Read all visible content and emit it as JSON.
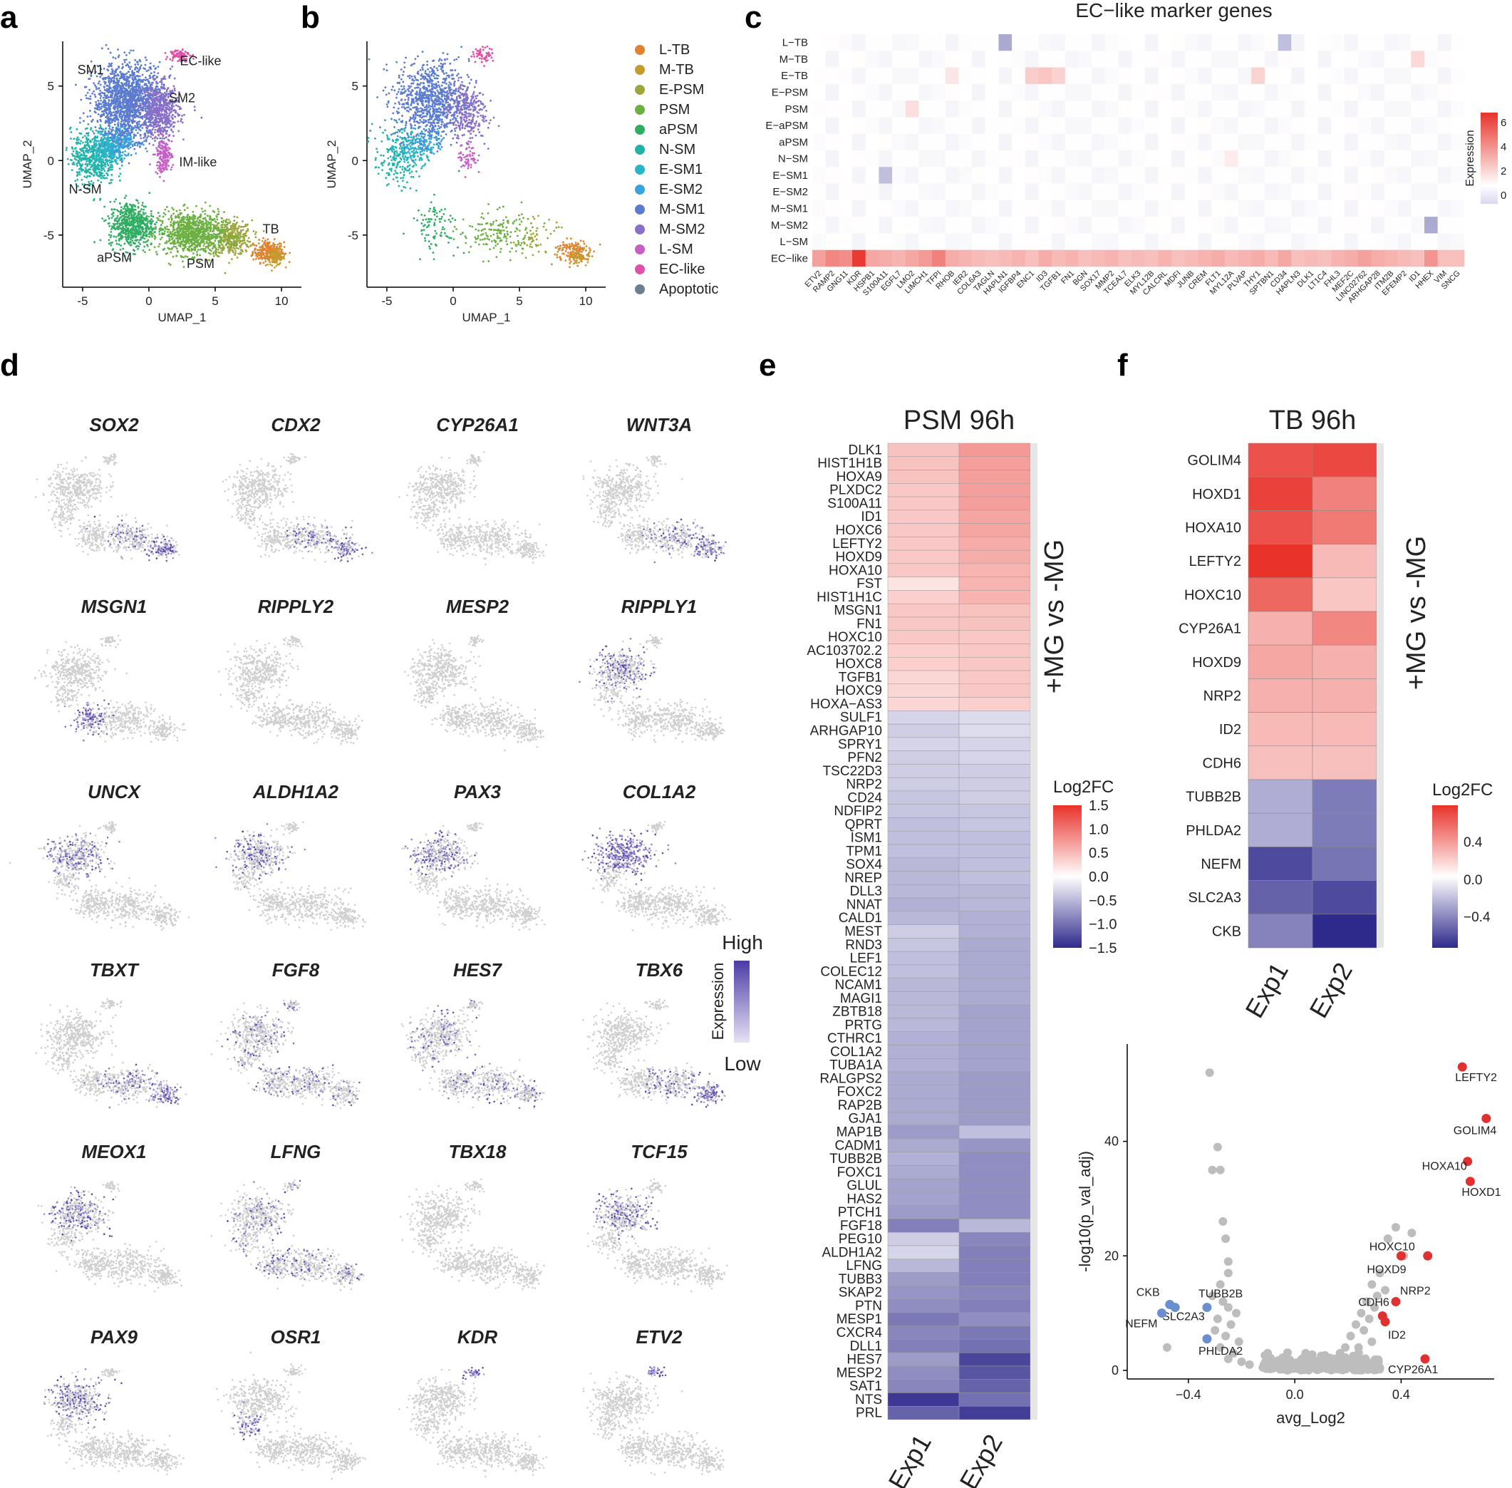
{
  "panel_letters": {
    "a": "a",
    "b": "b",
    "c": "c",
    "d": "d",
    "e": "e",
    "f": "f"
  },
  "chart_data": [
    {
      "id": "panel-a",
      "type": "scatter",
      "title": "",
      "xlabel": "UMAP_1",
      "ylabel": "UMAP_2",
      "xlim": [
        -6.5,
        11.5
      ],
      "ylim": [
        -8.5,
        8
      ],
      "xticks": [
        -5,
        0,
        5,
        10
      ],
      "yticks": [
        5,
        0,
        -5
      ],
      "cluster_labels": [
        {
          "text": "SM1",
          "x": -4.4,
          "y": 5.8
        },
        {
          "text": "EC-like",
          "x": 3.9,
          "y": 6.4
        },
        {
          "text": "SM2",
          "x": 2.5,
          "y": 3.9
        },
        {
          "text": "IM-like",
          "x": 3.7,
          "y": -0.4
        },
        {
          "text": "N-SM",
          "x": -4.8,
          "y": -2.2
        },
        {
          "text": "TB",
          "x": 9.2,
          "y": -4.9
        },
        {
          "text": "aPSM",
          "x": -2.6,
          "y": -6.8
        },
        {
          "text": "PSM",
          "x": 3.9,
          "y": -7.2
        }
      ],
      "series": [
        {
          "name": "L-TB",
          "color": "#e0822e",
          "cx": 9.0,
          "cy": -6.1,
          "sx": 0.9,
          "sy": 0.55
        },
        {
          "name": "M-TB",
          "color": "#c79a2e",
          "cx": 9.6,
          "cy": -6.5,
          "sx": 0.5,
          "sy": 0.4
        },
        {
          "name": "E-PSM",
          "color": "#9ca63a",
          "cx": 6.2,
          "cy": -5.2,
          "sx": 1.2,
          "sy": 0.9
        },
        {
          "name": "PSM",
          "color": "#6cb042",
          "cx": 3.2,
          "cy": -4.9,
          "sx": 1.9,
          "sy": 1.1
        },
        {
          "name": "aPSM",
          "color": "#2fae62",
          "cx": -1.3,
          "cy": -4.3,
          "sx": 1.3,
          "sy": 1.2
        },
        {
          "name": "N-SM",
          "color": "#22b3a8",
          "cx": -4.2,
          "cy": 0.2,
          "sx": 1.3,
          "sy": 1.4
        },
        {
          "name": "E-SM1",
          "color": "#29b5c9",
          "cx": -3.0,
          "cy": 0.8,
          "sx": 1.0,
          "sy": 0.8
        },
        {
          "name": "E-SM2",
          "color": "#3aa3de",
          "cx": -2.0,
          "cy": 1.4,
          "sx": 0.9,
          "sy": 0.7
        },
        {
          "name": "M-SM1",
          "color": "#5a7bd0",
          "cx": -1.6,
          "cy": 4.0,
          "sx": 2.0,
          "sy": 1.9
        },
        {
          "name": "M-SM2",
          "color": "#8a6fc9",
          "cx": 0.9,
          "cy": 3.3,
          "sx": 1.1,
          "sy": 1.4
        },
        {
          "name": "L-SM",
          "color": "#c55ec5",
          "cx": 1.1,
          "cy": 0.3,
          "sx": 0.5,
          "sy": 0.9
        },
        {
          "name": "EC-like",
          "color": "#e050a8",
          "cx": 2.3,
          "cy": 7.1,
          "sx": 0.6,
          "sy": 0.35
        },
        {
          "name": "Apoptotic",
          "color": "#6a7f8f",
          "cx": 0,
          "cy": 0,
          "sx": 0,
          "sy": 0
        }
      ]
    },
    {
      "id": "panel-b",
      "type": "scatter",
      "xlabel": "UMAP_1",
      "ylabel": "UMAP_2",
      "xlim": [
        -6.5,
        11.5
      ],
      "ylim": [
        -8.5,
        8
      ],
      "xticks": [
        -5,
        0,
        5,
        10
      ],
      "yticks": [
        5,
        0,
        -5
      ],
      "legend": [
        "L-TB",
        "M-TB",
        "E-PSM",
        "PSM",
        "aPSM",
        "N-SM",
        "E-SM1",
        "E-SM2",
        "M-SM1",
        "M-SM2",
        "L-SM",
        "EC-like",
        "Apoptotic"
      ]
    },
    {
      "id": "panel-c",
      "type": "heatmap",
      "title": "EC−like marker genes",
      "rows": [
        "L−TB",
        "M−TB",
        "E−TB",
        "E−PSM",
        "PSM",
        "E−aPSM",
        "aPSM",
        "N−SM",
        "E−SM1",
        "E−SM2",
        "M−SM1",
        "M−SM2",
        "L−SM",
        "EC−like"
      ],
      "columns": [
        "ETV2",
        "RAMP2",
        "GNG11",
        "KDR",
        "HSPB1",
        "S100A11",
        "EGFL7",
        "LMO2",
        "LIMCH1",
        "TFPI",
        "RHOB",
        "IER2",
        "COL6A3",
        "TAGLN",
        "HAPLN1",
        "IGFBP4",
        "ENC1",
        "ID3",
        "TGFB1",
        "FN1",
        "BGN",
        "SOX17",
        "MMP2",
        "TCEAL7",
        "ELK3",
        "MYL12B",
        "CALCRL",
        "MDFI",
        "JUNB",
        "CREM",
        "FLT1",
        "MYL12A",
        "PLVAP",
        "THY1",
        "SPTBN1",
        "CD34",
        "HAPLN3",
        "DLK1",
        "LT1C4",
        "FHL3",
        "MEF2C",
        "LINC02762",
        "ARHGAP28",
        "ITM2B",
        "EFEMP2",
        "ID1",
        "HHEX",
        "VIM",
        "SNCG"
      ],
      "ec_like_row": [
        3.0,
        3.8,
        3.6,
        6.2,
        2.8,
        2.6,
        2.4,
        2.8,
        3.2,
        4.0,
        2.6,
        2.4,
        2.2,
        2.0,
        2.2,
        2.4,
        2.0,
        2.6,
        2.2,
        2.4,
        2.0,
        2.2,
        2.4,
        2.0,
        2.2,
        2.0,
        2.4,
        2.0,
        2.2,
        2.4,
        2.6,
        2.2,
        2.4,
        2.6,
        2.2,
        2.8,
        2.0,
        2.2,
        2.0,
        2.4,
        2.6,
        3.0,
        2.6,
        2.4,
        2.2,
        2.0,
        3.4,
        2.0,
        2.0
      ],
      "highlights": [
        {
          "row": 2,
          "col": 16,
          "value": 1.6
        },
        {
          "row": 2,
          "col": 17,
          "value": 1.8
        },
        {
          "row": 2,
          "col": 18,
          "value": 1.4
        },
        {
          "row": 2,
          "col": 33,
          "value": 1.4
        },
        {
          "row": 4,
          "col": 7,
          "value": 1.0
        },
        {
          "row": 2,
          "col": 10,
          "value": 0.8
        },
        {
          "row": 1,
          "col": 45,
          "value": 1.2
        },
        {
          "row": 0,
          "col": 14,
          "value": -0.4
        },
        {
          "row": 0,
          "col": 35,
          "value": -0.3
        },
        {
          "row": 7,
          "col": 31,
          "value": 0.6
        },
        {
          "row": 8,
          "col": 5,
          "value": -0.3
        },
        {
          "row": 11,
          "col": 46,
          "value": -0.4
        }
      ],
      "legend_title": "Expression",
      "legend_ticks": [
        6,
        4,
        2,
        0
      ],
      "vmin": -1,
      "vmax": 6.5
    },
    {
      "id": "panel-d",
      "type": "scatter",
      "genes": [
        "SOX2",
        "CDX2",
        "CYP26A1",
        "WNT3A",
        "MSGN1",
        "RIPPLY2",
        "MESP2",
        "RIPPLY1",
        "UNCX",
        "ALDH1A2",
        "PAX3",
        "COL1A2",
        "TBXT",
        "FGF8",
        "HES7",
        "TBX6",
        "MEOX1",
        "LFNG",
        "TBX18",
        "TCF15",
        "PAX9",
        "OSR1",
        "KDR",
        "ETV2"
      ],
      "expression_region": [
        "tail",
        "tail",
        "none",
        "tail",
        "psm",
        "none",
        "none",
        "upper",
        "upper",
        "upper",
        "upper",
        "upper-strong",
        "tail",
        "scatter",
        "scatter",
        "tail",
        "upper",
        "scatter",
        "none",
        "upper",
        "upper",
        "left",
        "ec",
        "ec"
      ],
      "legend_title": "Expression",
      "legend_high": "High",
      "legend_low": "Low"
    },
    {
      "id": "panel-e",
      "type": "heatmap",
      "title": "PSM 96h",
      "side_label": "+MG vs -MG",
      "columns": [
        "Exp1",
        "Exp2"
      ],
      "rows": [
        "DLK1",
        "HIST1H1B",
        "HOXA9",
        "PLXDC2",
        "S100A11",
        "ID1",
        "HOXC6",
        "LEFTY2",
        "HOXD9",
        "HOXA10",
        "FST",
        "HIST1H1C",
        "MSGN1",
        "FN1",
        "HOXC10",
        "AC103702.2",
        "HOXC8",
        "TGFB1",
        "HOXC9",
        "HOXA−AS3",
        "SULF1",
        "ARHGAP10",
        "SPRY1",
        "PFN2",
        "TSC22D3",
        "NRP2",
        "CD24",
        "NDFIP2",
        "QPRT",
        "ISM1",
        "TPM1",
        "SOX4",
        "NREP",
        "DLL3",
        "NNAT",
        "CALD1",
        "MEST",
        "RND3",
        "LEF1",
        "COLEC12",
        "NCAM1",
        "MAGI1",
        "ZBTB18",
        "PRTG",
        "CTHRC1",
        "COL1A2",
        "TUBA1A",
        "RALGPS2",
        "FOXC2",
        "RAP2B",
        "GJA1",
        "MAP1B",
        "CADM1",
        "TUBB2B",
        "FOXC1",
        "GLUL",
        "HAS2",
        "PTCH1",
        "FGF18",
        "PEG10",
        "ALDH1A2",
        "LFNG",
        "TUBB3",
        "SKAP2",
        "PTN",
        "MESP1",
        "CXCR4",
        "DLL1",
        "HES7",
        "MESP2",
        "SAT1",
        "NTS",
        "PRL"
      ],
      "values": [
        [
          0.45,
          0.75
        ],
        [
          0.45,
          0.7
        ],
        [
          0.45,
          0.7
        ],
        [
          0.4,
          0.7
        ],
        [
          0.4,
          0.7
        ],
        [
          0.4,
          0.65
        ],
        [
          0.4,
          0.65
        ],
        [
          0.4,
          0.6
        ],
        [
          0.4,
          0.6
        ],
        [
          0.4,
          0.55
        ],
        [
          0.2,
          0.55
        ],
        [
          0.35,
          0.55
        ],
        [
          0.4,
          0.45
        ],
        [
          0.4,
          0.45
        ],
        [
          0.4,
          0.4
        ],
        [
          0.35,
          0.4
        ],
        [
          0.35,
          0.4
        ],
        [
          0.3,
          0.4
        ],
        [
          0.3,
          0.4
        ],
        [
          0.3,
          0.35
        ],
        [
          -0.3,
          -0.25
        ],
        [
          -0.35,
          -0.25
        ],
        [
          -0.3,
          -0.3
        ],
        [
          -0.35,
          -0.3
        ],
        [
          -0.35,
          -0.35
        ],
        [
          -0.35,
          -0.35
        ],
        [
          -0.4,
          -0.35
        ],
        [
          -0.4,
          -0.4
        ],
        [
          -0.45,
          -0.4
        ],
        [
          -0.45,
          -0.45
        ],
        [
          -0.45,
          -0.45
        ],
        [
          -0.5,
          -0.45
        ],
        [
          -0.5,
          -0.45
        ],
        [
          -0.5,
          -0.5
        ],
        [
          -0.55,
          -0.5
        ],
        [
          -0.5,
          -0.55
        ],
        [
          -0.35,
          -0.55
        ],
        [
          -0.4,
          -0.6
        ],
        [
          -0.45,
          -0.6
        ],
        [
          -0.45,
          -0.6
        ],
        [
          -0.5,
          -0.6
        ],
        [
          -0.5,
          -0.6
        ],
        [
          -0.5,
          -0.65
        ],
        [
          -0.5,
          -0.65
        ],
        [
          -0.55,
          -0.65
        ],
        [
          -0.55,
          -0.65
        ],
        [
          -0.55,
          -0.65
        ],
        [
          -0.6,
          -0.7
        ],
        [
          -0.6,
          -0.7
        ],
        [
          -0.6,
          -0.7
        ],
        [
          -0.6,
          -0.7
        ],
        [
          -0.7,
          -0.45
        ],
        [
          -0.6,
          -0.75
        ],
        [
          -0.55,
          -0.8
        ],
        [
          -0.6,
          -0.8
        ],
        [
          -0.65,
          -0.8
        ],
        [
          -0.65,
          -0.8
        ],
        [
          -0.7,
          -0.8
        ],
        [
          -0.9,
          -0.5
        ],
        [
          -0.35,
          -0.85
        ],
        [
          -0.3,
          -0.9
        ],
        [
          -0.5,
          -0.9
        ],
        [
          -0.7,
          -0.9
        ],
        [
          -0.75,
          -0.85
        ],
        [
          -0.8,
          -0.9
        ],
        [
          -0.95,
          -0.8
        ],
        [
          -0.85,
          -0.95
        ],
        [
          -0.9,
          -1.0
        ],
        [
          -0.7,
          -1.3
        ],
        [
          -0.8,
          -1.2
        ],
        [
          -0.85,
          -1.1
        ],
        [
          -1.4,
          -1.0
        ],
        [
          -1.1,
          -1.35
        ]
      ],
      "legend_title": "Log2FC",
      "legend_ticks": [
        1.5,
        1.0,
        0.5,
        0.0,
        -0.5,
        -1.0,
        -1.5
      ],
      "vmin": -1.5,
      "vmax": 1.5
    },
    {
      "id": "panel-f-heatmap",
      "type": "heatmap",
      "title": "TB 96h",
      "side_label": "+MG vs -MG",
      "columns": [
        "Exp1",
        "Exp2"
      ],
      "rows": [
        "GOLIM4",
        "HOXD1",
        "HOXA10",
        "LEFTY2",
        "HOXC10",
        "CYP26A1",
        "HOXD9",
        "NRP2",
        "ID2",
        "CDH6",
        "TUBB2B",
        "PHLDA2",
        "NEFM",
        "SLC2A3",
        "CKB"
      ],
      "values": [
        [
          0.55,
          0.58
        ],
        [
          0.6,
          0.4
        ],
        [
          0.55,
          0.42
        ],
        [
          0.68,
          0.22
        ],
        [
          0.48,
          0.18
        ],
        [
          0.25,
          0.38
        ],
        [
          0.28,
          0.25
        ],
        [
          0.25,
          0.25
        ],
        [
          0.22,
          0.22
        ],
        [
          0.2,
          0.2
        ],
        [
          -0.25,
          -0.4
        ],
        [
          -0.25,
          -0.4
        ],
        [
          -0.55,
          -0.42
        ],
        [
          -0.48,
          -0.55
        ],
        [
          -0.38,
          -0.65
        ]
      ],
      "legend_title": "Log2FC",
      "legend_ticks": [
        0.4,
        0.0,
        -0.4
      ],
      "vmin": -0.65,
      "vmax": 0.65
    },
    {
      "id": "panel-f-volcano",
      "type": "scatter",
      "xlabel": "avg_Log2",
      "ylabel": "-log10(p_val_adj)",
      "xlim": [
        -0.63,
        0.75
      ],
      "ylim": [
        -1.5,
        57
      ],
      "xticks": [
        -0.4,
        0.0,
        0.4
      ],
      "yticks": [
        0,
        20,
        40
      ],
      "up_color": "#e03030",
      "down_color": "#6a8fd0",
      "ns_color": "#bdbdbd",
      "up_genes": [
        {
          "label": "LEFTY2",
          "x": 0.63,
          "y": 53.0
        },
        {
          "label": "GOLIM4",
          "x": 0.72,
          "y": 44.0
        },
        {
          "label": "HOXA10",
          "x": 0.65,
          "y": 36.5
        },
        {
          "label": "HOXD1",
          "x": 0.66,
          "y": 33.0
        },
        {
          "label": "HOXC10",
          "x": 0.5,
          "y": 20.0
        },
        {
          "label": "HOXD9",
          "x": 0.4,
          "y": 20.0
        },
        {
          "label": "NRP2",
          "x": 0.38,
          "y": 12.0
        },
        {
          "label": "CDH6",
          "x": 0.33,
          "y": 9.5
        },
        {
          "label": "ID2",
          "x": 0.34,
          "y": 8.5
        },
        {
          "label": "CYP26A1",
          "x": 0.49,
          "y": 2.0
        }
      ],
      "down_genes": [
        {
          "label": "CKB",
          "x": -0.47,
          "y": 11.5
        },
        {
          "label": "SLC2A3",
          "x": -0.45,
          "y": 11.0
        },
        {
          "label": "NEFM",
          "x": -0.5,
          "y": 10.0
        },
        {
          "label": "TUBB2B",
          "x": -0.33,
          "y": 11.0
        },
        {
          "label": "PHLDA2",
          "x": -0.33,
          "y": 5.5
        }
      ],
      "ns_points": [
        {
          "x": -0.32,
          "y": 52
        },
        {
          "x": -0.29,
          "y": 39
        },
        {
          "x": -0.31,
          "y": 35
        },
        {
          "x": -0.28,
          "y": 35
        },
        {
          "x": -0.27,
          "y": 26
        },
        {
          "x": -0.26,
          "y": 23
        },
        {
          "x": -0.25,
          "y": 19
        },
        {
          "x": -0.25,
          "y": 17
        },
        {
          "x": -0.28,
          "y": 15
        },
        {
          "x": -0.31,
          "y": 13
        },
        {
          "x": -0.27,
          "y": 12
        },
        {
          "x": -0.25,
          "y": 11
        },
        {
          "x": -0.22,
          "y": 10
        },
        {
          "x": -0.29,
          "y": 9
        },
        {
          "x": -0.24,
          "y": 8
        },
        {
          "x": -0.3,
          "y": 7
        },
        {
          "x": -0.26,
          "y": 6
        },
        {
          "x": -0.21,
          "y": 5
        },
        {
          "x": -0.48,
          "y": 4
        },
        {
          "x": -0.28,
          "y": 4
        },
        {
          "x": -0.23,
          "y": 3
        },
        {
          "x": -0.25,
          "y": 2
        },
        {
          "x": -0.2,
          "y": 1.5
        },
        {
          "x": -0.17,
          "y": 1
        },
        {
          "x": -0.12,
          "y": 0.5
        },
        {
          "x": 0.38,
          "y": 25
        },
        {
          "x": 0.35,
          "y": 23
        },
        {
          "x": 0.44,
          "y": 24
        },
        {
          "x": 0.41,
          "y": 20
        },
        {
          "x": 0.32,
          "y": 17
        },
        {
          "x": 0.29,
          "y": 15
        },
        {
          "x": 0.34,
          "y": 14
        },
        {
          "x": 0.31,
          "y": 13
        },
        {
          "x": 0.27,
          "y": 12
        },
        {
          "x": 0.3,
          "y": 11
        },
        {
          "x": 0.25,
          "y": 10
        },
        {
          "x": 0.28,
          "y": 9
        },
        {
          "x": 0.23,
          "y": 8
        },
        {
          "x": 0.26,
          "y": 7
        },
        {
          "x": 0.21,
          "y": 6
        },
        {
          "x": 0.29,
          "y": 5
        },
        {
          "x": 0.19,
          "y": 4
        },
        {
          "x": 0.24,
          "y": 4
        },
        {
          "x": 0.17,
          "y": 3
        },
        {
          "x": 0.22,
          "y": 2.5
        },
        {
          "x": 0.15,
          "y": 2
        },
        {
          "x": 0.12,
          "y": 1.5
        },
        {
          "x": 0.09,
          "y": 1
        },
        {
          "x": 0.06,
          "y": 0.5
        },
        {
          "x": 0.2,
          "y": 1
        }
      ]
    }
  ]
}
